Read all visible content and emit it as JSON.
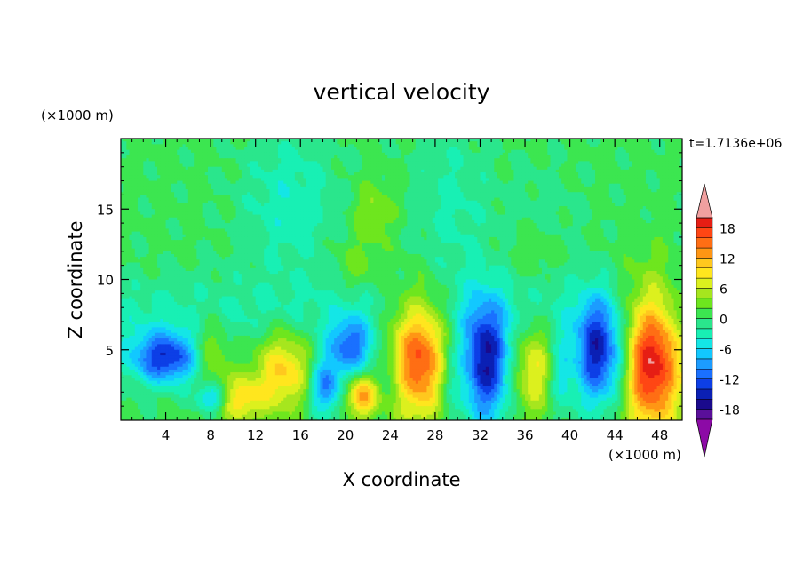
{
  "chart_data": {
    "type": "heatmap",
    "title": "vertical velocity",
    "xlabel": "X coordinate",
    "ylabel": "Z coordinate",
    "x_unit": "(×1000 m)",
    "y_unit": "(×1000 m)",
    "time_label": "t=1.7136e+06",
    "xlim": [
      0,
      50
    ],
    "ylim": [
      0,
      20
    ],
    "xticks": [
      4,
      8,
      12,
      16,
      20,
      24,
      28,
      32,
      36,
      40,
      44,
      48
    ],
    "xtick_labels": [
      "4",
      "8",
      "12",
      "16",
      "20",
      "24",
      "28",
      "32",
      "36",
      "40",
      "44",
      "48"
    ],
    "yticks": [
      5,
      10,
      15
    ],
    "ytick_labels": [
      "5",
      "10",
      "15"
    ],
    "colorbar": {
      "min": -20,
      "max": 20,
      "step": 2,
      "tick_values": [
        18,
        12,
        6,
        0,
        -6,
        -12,
        -18
      ],
      "tick_labels": [
        "18",
        "12",
        "6",
        "0",
        "-6",
        "-12",
        "-18"
      ],
      "colors": [
        "#5a0f9a",
        "#1a0a8c",
        "#0b20b4",
        "#0d3fe6",
        "#1a70ff",
        "#1c9cff",
        "#12c8ff",
        "#14e6e6",
        "#18f0b4",
        "#2ae68c",
        "#3ce650",
        "#6ee61e",
        "#a6e61e",
        "#dcf01e",
        "#ffe61e",
        "#ffc81e",
        "#ff9614",
        "#ff6e14",
        "#ff4614",
        "#e61e14",
        "#f0a0a0"
      ],
      "extend_below_color": "#8c0aa6",
      "extend_above_color": "#f0a0a0"
    },
    "background_value": 0.5,
    "features": [
      {
        "type": "blob",
        "x": 4,
        "z": 4.4,
        "sx": 2.2,
        "sz": 1.3,
        "value": -14
      },
      {
        "type": "blob",
        "x": 8.2,
        "z": 1.6,
        "sx": 1.0,
        "sz": 0.7,
        "value": -10
      },
      {
        "type": "blob",
        "x": 8,
        "z": 5.0,
        "sx": 1.2,
        "sz": 1.6,
        "value": 6
      },
      {
        "type": "blob",
        "x": 10.5,
        "z": 1.5,
        "sx": 1.6,
        "sz": 1.1,
        "value": 9
      },
      {
        "type": "blob",
        "x": 14.5,
        "z": 3.6,
        "sx": 1.8,
        "sz": 2.0,
        "value": 10
      },
      {
        "type": "blob",
        "x": 18.2,
        "z": 2.4,
        "sx": 1.0,
        "sz": 1.4,
        "value": -11
      },
      {
        "type": "blob",
        "x": 20.5,
        "z": 5.2,
        "sx": 1.4,
        "sz": 1.4,
        "value": -11
      },
      {
        "type": "blob",
        "x": 21.5,
        "z": 1.7,
        "sx": 1.0,
        "sz": 1.0,
        "value": 12
      },
      {
        "type": "blob",
        "x": 24,
        "z": 3.0,
        "sx": 1.0,
        "sz": 1.6,
        "value": -4
      },
      {
        "type": "blob",
        "x": 26.6,
        "z": 4.5,
        "sx": 2.0,
        "sz": 3.0,
        "value": 17
      },
      {
        "type": "blob",
        "x": 29.2,
        "z": 3.0,
        "sx": 0.9,
        "sz": 2.2,
        "value": -5
      },
      {
        "type": "blob",
        "x": 32.5,
        "z": 4.0,
        "sx": 1.5,
        "sz": 3.0,
        "value": -16
      },
      {
        "type": "blob",
        "x": 36.8,
        "z": 3.8,
        "sx": 1.4,
        "sz": 2.4,
        "value": 8
      },
      {
        "type": "blob",
        "x": 39.2,
        "z": 3.2,
        "sx": 0.8,
        "sz": 2.0,
        "value": -6
      },
      {
        "type": "blob",
        "x": 42.4,
        "z": 4.7,
        "sx": 1.3,
        "sz": 2.6,
        "value": -15
      },
      {
        "type": "blob",
        "x": 44.5,
        "z": 4.0,
        "sx": 0.9,
        "sz": 2.2,
        "value": -5
      },
      {
        "type": "blob",
        "x": 47.3,
        "z": 4.3,
        "sx": 1.9,
        "sz": 3.5,
        "value": 20
      },
      {
        "type": "blob",
        "x": 15,
        "z": 15.5,
        "sx": 3.0,
        "sz": 3.5,
        "value": -4
      },
      {
        "type": "blob",
        "x": 29.5,
        "z": 15.0,
        "sx": 2.5,
        "sz": 4.5,
        "value": -3
      },
      {
        "type": "blob",
        "x": 37.5,
        "z": 13.5,
        "sx": 2.5,
        "sz": 3.0,
        "value": -2
      },
      {
        "type": "blob",
        "x": 22.5,
        "z": 14.8,
        "sx": 1.3,
        "sz": 1.4,
        "value": 4
      },
      {
        "type": "blob",
        "x": 21,
        "z": 11.0,
        "sx": 1.5,
        "sz": 1.2,
        "value": 3
      },
      {
        "type": "blob",
        "x": 37.0,
        "z": 12.0,
        "sx": 1.8,
        "sz": 1.5,
        "value": 3
      },
      {
        "type": "band",
        "z": 7.5,
        "sz": 2.0,
        "value": -3
      }
    ]
  }
}
